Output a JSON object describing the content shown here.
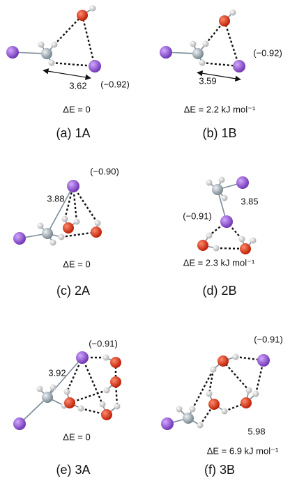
{
  "panels": [
    {
      "label": "(a) 1A",
      "distance": "3.62",
      "charge": "(−0.92)",
      "energy": "ΔE = 0"
    },
    {
      "label": "(b) 1B",
      "distance": "3.59",
      "charge": "(−0.92)",
      "energy": "ΔE = 2.2 kJ mol⁻¹"
    },
    {
      "label": "(c) 2A",
      "distance": "3.88",
      "charge": "(−0.90)",
      "energy": "ΔE = 0"
    },
    {
      "label": "(d) 2B",
      "distance": "3.85",
      "charge": "(−0.91)",
      "energy": "ΔE = 2.3 kJ mol⁻¹"
    },
    {
      "label": "(e) 3A",
      "distance": "3.92",
      "charge": "(−0.91)",
      "energy": "ΔE = 0"
    },
    {
      "label": "(f) 3B",
      "distance": "5.98",
      "charge": "(−0.91)",
      "energy": "ΔE = 6.9 kJ mol⁻¹"
    }
  ]
}
